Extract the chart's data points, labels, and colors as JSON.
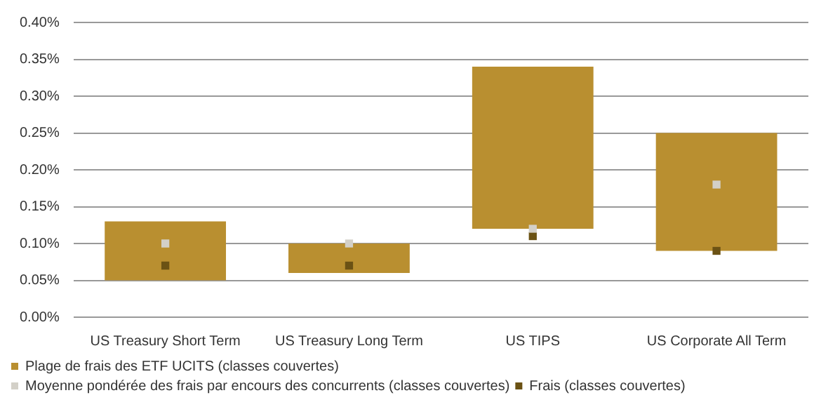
{
  "chart_data": {
    "type": "bar",
    "categories": [
      "US Treasury Short Term",
      "US Treasury Long Term",
      "US TIPS",
      "US Corporate All Term"
    ],
    "series": [
      {
        "name": "Plage de frais des ETF UCITS (classes couvertes)",
        "color": "#b98f30",
        "base": [
          0.05,
          0.06,
          0.12,
          0.09
        ],
        "values": [
          0.08,
          0.04,
          0.22,
          0.16
        ]
      },
      {
        "name": "Moyenne pondérée des frais par encours des concurrents (classes couvertes)",
        "type": "scatter",
        "color": "#d3d0c8",
        "x": [
          "US Treasury Short Term",
          "US Treasury Long Term",
          "US TIPS",
          "US Corporate All Term"
        ],
        "values": [
          0.1,
          0.1,
          0.12,
          0.18
        ]
      },
      {
        "name": "Frais (classes couvertes)",
        "type": "scatter",
        "color": "#6b5214",
        "x": [
          "US Treasury Short Term",
          "US Treasury Long Term",
          "US TIPS",
          "US Corporate All Term"
        ],
        "values": [
          0.07,
          0.07,
          0.11,
          0.09
        ]
      }
    ],
    "ylim": [
      0,
      0.4
    ],
    "yticks": [
      {
        "value": 0,
        "label": "0.00%"
      },
      {
        "value": 0.05,
        "label": "0.05%"
      },
      {
        "value": 0.1,
        "label": "0.10%"
      },
      {
        "value": 0.15,
        "label": "0.15%"
      },
      {
        "value": 0.2,
        "label": "0.20%"
      },
      {
        "value": 0.25,
        "label": "0.25%"
      },
      {
        "value": 0.3,
        "label": "0.30%"
      },
      {
        "value": 0.35,
        "label": "0.35%"
      },
      {
        "value": 0.4,
        "label": "0.40%"
      }
    ],
    "grid": "y",
    "marker": "square",
    "legend": "bottom left"
  }
}
